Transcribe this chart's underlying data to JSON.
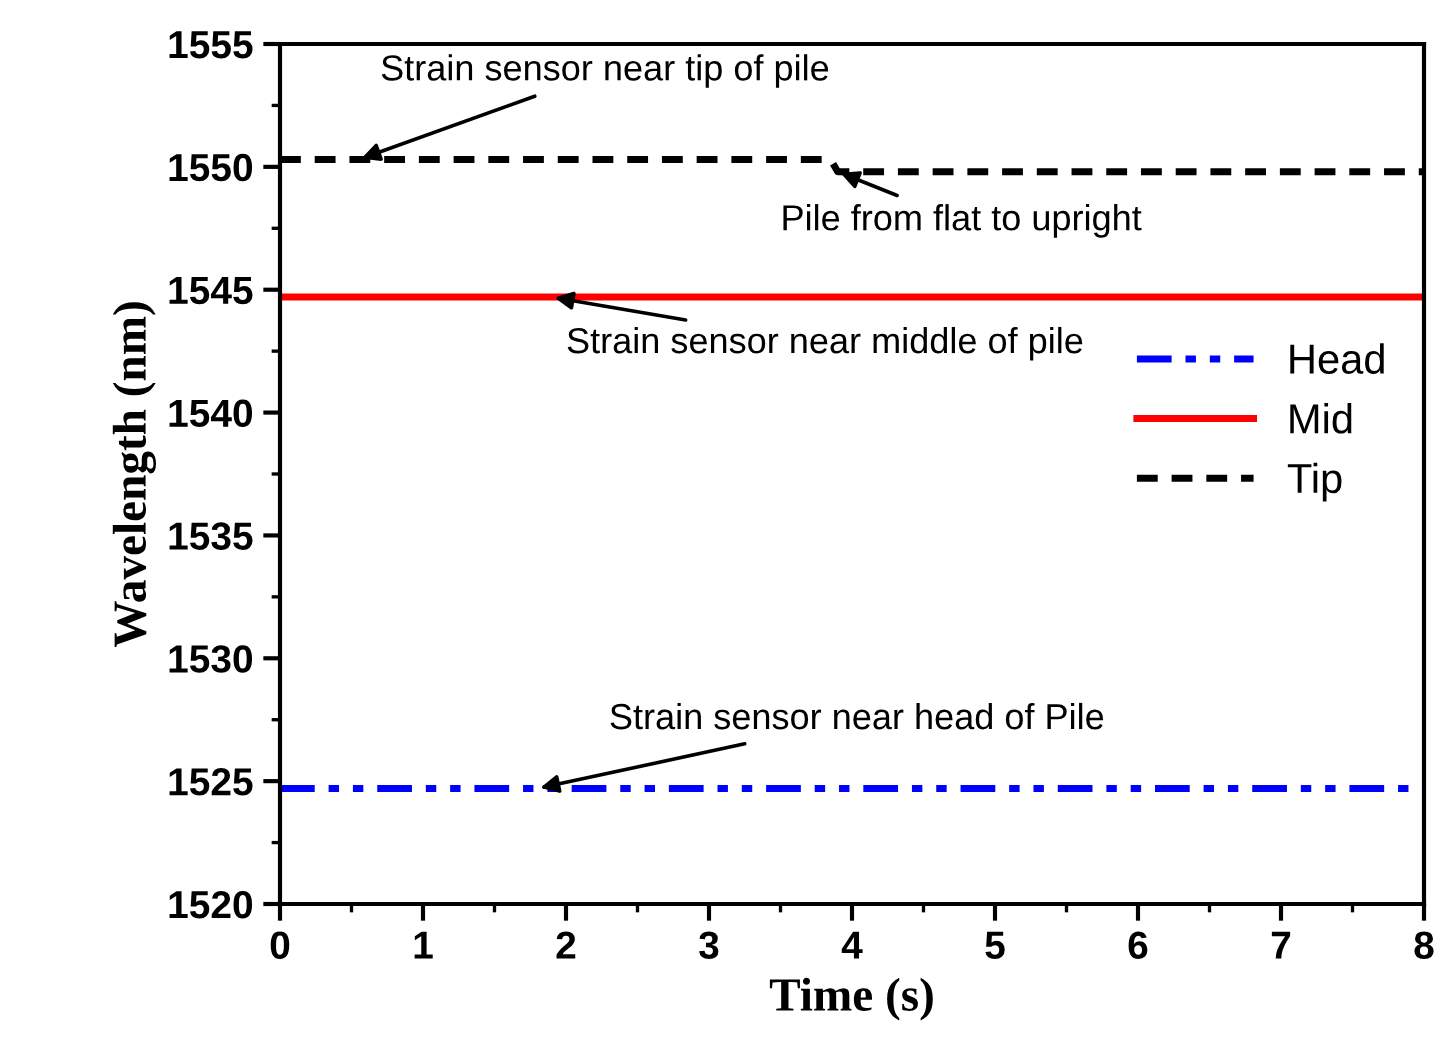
{
  "chart_data": {
    "type": "line",
    "xlabel": "Time (s)",
    "ylabel": "Wavelength (nm)",
    "xlim": [
      0,
      8
    ],
    "xticks": [
      0,
      1,
      2,
      3,
      4,
      5,
      6,
      7,
      8
    ],
    "ylim": [
      1520,
      1555
    ],
    "yticks": [
      1520,
      1525,
      1530,
      1535,
      1540,
      1545,
      1550,
      1555
    ],
    "grid": false,
    "legend": "right",
    "marker": "none",
    "series": [
      {
        "name": "Head",
        "color": "#0000ff",
        "line_style": "dashdot",
        "x": [
          0,
          8
        ],
        "values": [
          1524.7,
          1524.7
        ]
      },
      {
        "name": "Mid",
        "color": "#ff0000",
        "line_style": "solid",
        "x": [
          0,
          8
        ],
        "values": [
          1544.7,
          1544.7
        ]
      },
      {
        "name": "Tip",
        "color": "#000000",
        "line_style": "dashed",
        "x": [
          0,
          3.85,
          3.9,
          8
        ],
        "values": [
          1550.3,
          1550.3,
          1549.8,
          1549.8
        ]
      }
    ],
    "annotations": [
      {
        "text": "Strain sensor near tip of pile",
        "x": 0.55,
        "y": 1550.3
      },
      {
        "text": "Pile from flat to upright",
        "x": 3.9,
        "y": 1549.8
      },
      {
        "text": "Strain sensor near middle of pile",
        "x": 1.9,
        "y": 1544.7
      },
      {
        "text": "Strain sensor near head of Pile",
        "x": 1.8,
        "y": 1524.7
      }
    ]
  }
}
